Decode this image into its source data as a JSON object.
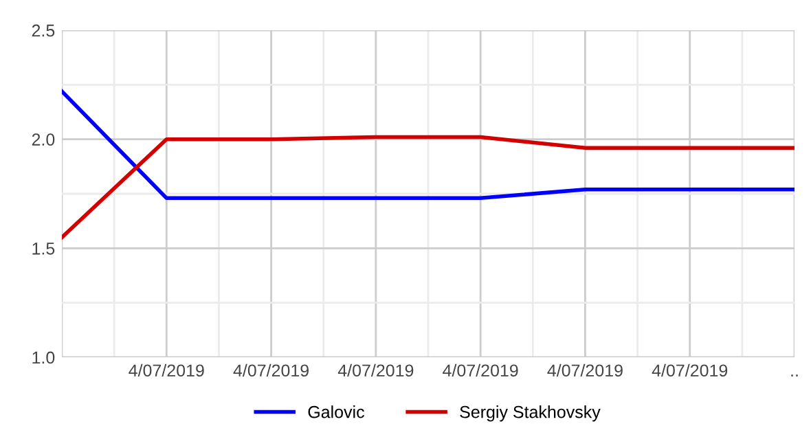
{
  "chart_data": {
    "type": "line",
    "categories": [
      null,
      "4/07/2019",
      "4/07/2019",
      "4/07/2019",
      "4/07/2019",
      "4/07/2019",
      "4/07/2019",
      ".."
    ],
    "series": [
      {
        "name": "Galovic",
        "color": "#0000ff",
        "values": [
          2.22,
          1.73,
          1.73,
          1.73,
          1.73,
          1.77,
          1.77,
          1.77
        ]
      },
      {
        "name": "Sergiy Stakhovsky",
        "color": "#d40000",
        "values": [
          1.55,
          2.0,
          2.0,
          2.01,
          2.01,
          1.96,
          1.96,
          1.96
        ]
      }
    ],
    "ylim": [
      1.0,
      2.5
    ],
    "yticks": [
      {
        "value": 1.0,
        "label": "1.0"
      },
      {
        "value": 1.25,
        "label": null
      },
      {
        "value": 1.5,
        "label": "1.5"
      },
      {
        "value": 1.75,
        "label": null
      },
      {
        "value": 2.0,
        "label": "2.0"
      },
      {
        "value": 2.25,
        "label": null
      },
      {
        "value": 2.5,
        "label": "2.5"
      }
    ],
    "grid": true,
    "legend": "bottom",
    "marker": "none",
    "line_style": "solid"
  }
}
